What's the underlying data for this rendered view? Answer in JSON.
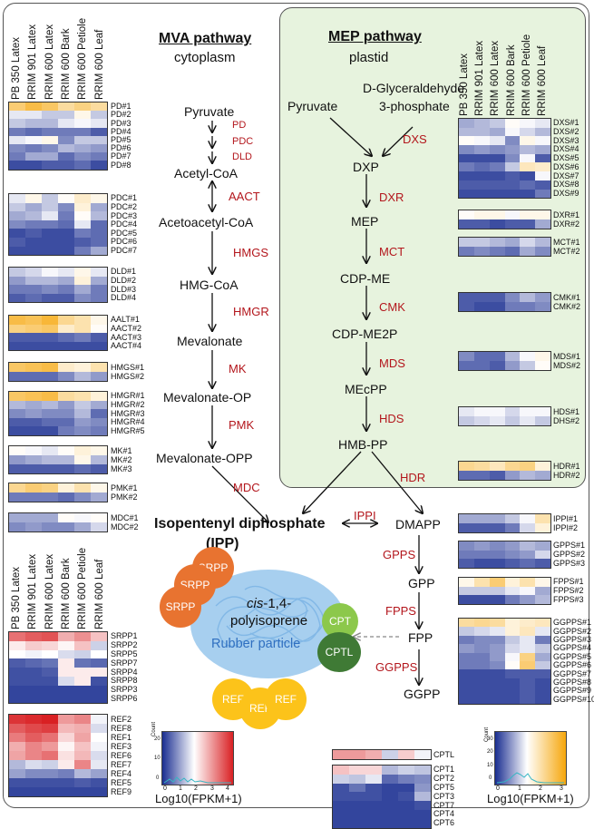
{
  "mva": {
    "title": "MVA pathway",
    "subtitle": "cytoplasm"
  },
  "mep": {
    "title": "MEP pathway",
    "subtitle": "plastid"
  },
  "columns": [
    "PB 350 Latex",
    "RRIM 901 Latex",
    "RRIM 600 Latex",
    "RRIM 600 Bark",
    "RRIM 600 Petiole",
    "RRIM 600 Leaf"
  ],
  "columns_left": [
    "PB 350 Latex",
    "RRIM 901 Latex",
    "RRIM 600 Latex",
    "RRIM 600 Bark",
    "RRIM 600 Petiole",
    "RRIM 600 Leaf"
  ],
  "columns_srpp": [
    "PB 350 Latex",
    "RRIM 901 Latex",
    "RRIM 600 Latex",
    "RRIM 600 Bark",
    "RRIM 600 Petiole",
    "RRIM 600 Leaf"
  ],
  "metabolites": {
    "pyruvate": "Pyruvate",
    "acetyl_coa": "Acetyl-CoA",
    "acetoacetyl_coa": "Acetoacetyl-CoA",
    "hmg_coa": "HMG-CoA",
    "mevalonate": "Mevalonate",
    "mevalonate_op": "Mevalonate-OP",
    "mevalonate_opp": "Mevalonate-OPP",
    "mep_pyruvate": "Pyruvate",
    "g3p_line1": "D-Glyceraldehyde",
    "g3p_line2": "3-phosphate",
    "dxp": "DXP",
    "mep": "MEP",
    "cdp_me": "CDP-ME",
    "cdp_me2p": "CDP-ME2P",
    "mecpp": "MEcPP",
    "hmb_pp": "HMB-PP",
    "ipp_line1": "Isopentenyl diphosphate",
    "ipp_line2": "(IPP)",
    "dmapp": "DMAPP",
    "gpp": "GPP",
    "fpp": "FPP",
    "ggpp": "GGPP"
  },
  "enzymes": {
    "pd": "PD",
    "pdc": "PDC",
    "dld": "DLD",
    "aact": "AACT",
    "hmgs": "HMGS",
    "hmgr": "HMGR",
    "mk": "MK",
    "pmk": "PMK",
    "mdc": "MDC",
    "dxs": "DXS",
    "dxr": "DXR",
    "mct": "MCT",
    "cmk": "CMK",
    "mds": "MDS",
    "hds": "HDS",
    "hdr": "HDR",
    "ippi": "IPPI",
    "gpps": "GPPS",
    "fpps": "FPPS",
    "ggpps": "GGPPS"
  },
  "rubber": {
    "line1_italic": "cis",
    "line1_rest": "-1,4-",
    "line2": "polyisoprene",
    "label": "Rubber particle",
    "srpp": "SRPP",
    "ref": "REF",
    "cpt": "CPT",
    "cptl": "CPTL"
  },
  "legend_red": {
    "axis_label": "Log10(FPKM+1)",
    "count_label": "Count",
    "ticks_x": [
      "0",
      "1",
      "2",
      "3",
      "4"
    ],
    "ticks_y": [
      "0",
      "10",
      "20"
    ]
  },
  "legend_orange": {
    "axis_label": "Log10(FPKM+1)",
    "count_label": "Count",
    "ticks_x": [
      "0",
      "1",
      "2",
      "3"
    ],
    "ticks_y": [
      "0",
      "10",
      "20",
      "30"
    ]
  },
  "heatmaps": [
    {
      "id": "pd",
      "scale": "blue-orange",
      "rows": [
        "PD#1",
        "PD#2",
        "PD#3",
        "PD#4",
        "PD#5",
        "PD#6",
        "PD#7",
        "PD#8"
      ],
      "values": [
        [
          2.3,
          2.6,
          2.4,
          2.0,
          2.2,
          2.0
        ],
        [
          1.2,
          1.2,
          1.0,
          1.0,
          1.5,
          1.0
        ],
        [
          1.0,
          0.9,
          0.9,
          1.2,
          1.3,
          1.2
        ],
        [
          0.5,
          0.4,
          0.5,
          0.5,
          0.5,
          0.3
        ],
        [
          1.2,
          1.3,
          1.5,
          0.6,
          1.0,
          1.0
        ],
        [
          0.6,
          0.5,
          0.6,
          0.9,
          0.8,
          0.7
        ],
        [
          0.5,
          0.8,
          0.8,
          0.4,
          0.6,
          0.5
        ],
        [
          0.2,
          0.2,
          0.3,
          0.3,
          0.4,
          0.2
        ]
      ]
    },
    {
      "id": "pdc",
      "scale": "blue-orange",
      "rows": [
        "PDC#1",
        "PDC#2",
        "PDC#3",
        "PDC#4",
        "PDC#5",
        "PDC#6",
        "PDC#7"
      ],
      "values": [
        [
          1.2,
          1.5,
          1.0,
          1.4,
          1.7,
          1.5
        ],
        [
          1.0,
          0.8,
          1.0,
          0.6,
          1.6,
          0.8
        ],
        [
          0.8,
          0.9,
          1.2,
          0.5,
          1.4,
          0.9
        ],
        [
          0.6,
          0.5,
          0.5,
          0.4,
          1.2,
          0.4
        ],
        [
          0.2,
          0.3,
          0.2,
          0.2,
          0.5,
          0.4
        ],
        [
          0.3,
          0.2,
          0.2,
          0.2,
          0.3,
          0.4
        ],
        [
          0.2,
          0.2,
          0.2,
          0.2,
          0.5,
          0.8
        ]
      ]
    },
    {
      "id": "dld",
      "scale": "blue-orange",
      "rows": [
        "DLD#1",
        "DLD#2",
        "DLD#3",
        "DLD#4"
      ],
      "values": [
        [
          1.0,
          1.1,
          1.3,
          1.2,
          1.5,
          1.2
        ],
        [
          0.7,
          0.9,
          0.9,
          0.8,
          1.6,
          0.8
        ],
        [
          0.5,
          0.5,
          0.6,
          0.5,
          0.8,
          0.5
        ],
        [
          0.3,
          0.4,
          0.3,
          0.3,
          0.6,
          0.5
        ]
      ]
    },
    {
      "id": "aact",
      "scale": "blue-orange",
      "rows": [
        "AALT#1",
        "AACT#2",
        "AACT#3",
        "AACT#4"
      ],
      "values": [
        [
          2.6,
          2.5,
          2.7,
          2.1,
          1.9,
          1.5
        ],
        [
          2.2,
          2.3,
          2.4,
          1.7,
          1.9,
          1.4
        ],
        [
          0.3,
          0.3,
          0.3,
          0.4,
          0.5,
          0.3
        ],
        [
          0.2,
          0.2,
          0.2,
          0.2,
          0.2,
          0.2
        ]
      ]
    },
    {
      "id": "hmgs",
      "scale": "blue-orange",
      "rows": [
        "HMGS#1",
        "HMGS#2"
      ],
      "values": [
        [
          2.4,
          2.5,
          2.6,
          1.7,
          1.6,
          1.9
        ],
        [
          0.4,
          0.4,
          0.4,
          0.6,
          0.9,
          0.7
        ]
      ]
    },
    {
      "id": "hmgr",
      "scale": "blue-orange",
      "rows": [
        "HMGR#1",
        "HMGR#2",
        "HMGR#3",
        "HMGR#4",
        "HMGR#5"
      ],
      "values": [
        [
          2.4,
          2.5,
          2.6,
          2.0,
          1.9,
          1.6
        ],
        [
          0.9,
          0.8,
          0.9,
          0.7,
          1.0,
          0.8
        ],
        [
          0.6,
          0.7,
          0.6,
          0.6,
          0.9,
          0.4
        ],
        [
          0.3,
          0.3,
          0.4,
          0.4,
          0.7,
          0.6
        ],
        [
          0.2,
          0.2,
          0.2,
          0.5,
          0.6,
          0.5
        ]
      ]
    },
    {
      "id": "mk",
      "scale": "blue-orange",
      "rows": [
        "MK#1",
        "MK#2",
        "MK#3"
      ],
      "values": [
        [
          1.4,
          1.3,
          1.2,
          1.4,
          1.6,
          1.5
        ],
        [
          0.7,
          0.8,
          0.9,
          0.9,
          1.5,
          0.9
        ],
        [
          0.3,
          0.3,
          0.3,
          0.3,
          0.4,
          0.3
        ]
      ]
    },
    {
      "id": "pmk",
      "scale": "blue-orange",
      "rows": [
        "PMK#1",
        "PMK#2"
      ],
      "values": [
        [
          2.1,
          2.3,
          2.2,
          1.6,
          1.9,
          1.5
        ],
        [
          0.5,
          0.5,
          0.5,
          0.4,
          0.6,
          0.8
        ]
      ]
    },
    {
      "id": "mdc",
      "scale": "blue-orange",
      "rows": [
        "MDC#1",
        "MDC#2"
      ],
      "values": [
        [
          0.8,
          0.8,
          0.8,
          1.4,
          1.3,
          1.4
        ],
        [
          0.6,
          0.7,
          0.6,
          0.6,
          0.8,
          1.1
        ]
      ]
    },
    {
      "id": "dxs",
      "scale": "blue-orange",
      "rows": [
        "DXS#1",
        "DXS#2",
        "DXS#3",
        "DXS#4",
        "DXS#5",
        "DXS#6",
        "DXS#7",
        "DXS#8",
        "DXS#9"
      ],
      "values": [
        [
          0.8,
          0.9,
          1.0,
          1.4,
          1.3,
          1.2
        ],
        [
          0.9,
          0.9,
          0.8,
          1.3,
          1.1,
          0.9
        ],
        [
          1.4,
          1.3,
          1.2,
          0.6,
          1.5,
          1.3
        ],
        [
          0.6,
          0.7,
          0.6,
          0.7,
          0.9,
          0.8
        ],
        [
          0.2,
          0.2,
          0.2,
          0.6,
          1.3,
          0.3
        ],
        [
          0.5,
          0.4,
          0.5,
          1.0,
          1.8,
          1.7
        ],
        [
          0.2,
          0.2,
          0.2,
          0.3,
          0.2,
          1.3
        ],
        [
          0.3,
          0.3,
          0.3,
          0.3,
          0.4,
          0.3
        ],
        [
          0.2,
          0.2,
          0.2,
          0.2,
          0.2,
          0.5
        ]
      ]
    },
    {
      "id": "dxr",
      "scale": "blue-orange",
      "rows": [
        "DXR#1",
        "DXR#2"
      ],
      "values": [
        [
          1.4,
          1.5,
          1.5,
          1.3,
          1.5,
          1.5
        ],
        [
          0.3,
          0.3,
          0.2,
          0.3,
          0.3,
          0.8
        ]
      ]
    },
    {
      "id": "mct",
      "scale": "blue-orange",
      "rows": [
        "MCT#1",
        "MCT#2"
      ],
      "values": [
        [
          1.0,
          1.0,
          0.9,
          0.8,
          1.1,
          0.9
        ],
        [
          0.5,
          0.6,
          0.5,
          0.4,
          0.8,
          0.6
        ]
      ]
    },
    {
      "id": "cmk",
      "scale": "blue-orange",
      "rows": [
        "CMK#1",
        "CMK#2"
      ],
      "values": [
        [
          0.3,
          0.3,
          0.3,
          0.6,
          0.9,
          0.7
        ],
        [
          0.3,
          0.2,
          0.2,
          0.5,
          0.5,
          0.6
        ]
      ]
    },
    {
      "id": "mds",
      "scale": "blue-orange",
      "rows": [
        "MDS#1",
        "MDS#2"
      ],
      "values": [
        [
          0.6,
          0.4,
          0.4,
          0.9,
          1.3,
          1.5
        ],
        [
          0.4,
          0.4,
          0.3,
          0.7,
          1.0,
          1.4
        ]
      ]
    },
    {
      "id": "hds",
      "scale": "blue-orange",
      "rows": [
        "HDS#1",
        "DHS#2"
      ],
      "values": [
        [
          1.2,
          1.3,
          1.3,
          1.1,
          1.3,
          1.3
        ],
        [
          1.0,
          1.1,
          1.2,
          1.0,
          1.2,
          1.0
        ]
      ]
    },
    {
      "id": "hdr",
      "scale": "blue-orange",
      "rows": [
        "HDR#1",
        "HDR#2"
      ],
      "values": [
        [
          2.1,
          2.0,
          1.8,
          2.1,
          2.2,
          1.6
        ],
        [
          0.4,
          0.4,
          0.3,
          0.7,
          0.9,
          0.8
        ]
      ]
    },
    {
      "id": "ippi",
      "scale": "blue-orange",
      "rows": [
        "IPPI#1",
        "IPPI#2"
      ],
      "values": [
        [
          0.8,
          0.8,
          0.8,
          1.0,
          1.3,
          1.9
        ],
        [
          0.3,
          0.3,
          0.3,
          0.5,
          1.1,
          1.6
        ]
      ]
    },
    {
      "id": "gpps",
      "scale": "blue-orange",
      "rows": [
        "GPPS#1",
        "GPPS#2",
        "GPPS#3"
      ],
      "values": [
        [
          0.6,
          0.7,
          0.6,
          0.7,
          0.9,
          0.8
        ],
        [
          0.5,
          0.5,
          0.5,
          0.6,
          0.7,
          1.1
        ],
        [
          0.3,
          0.2,
          0.2,
          0.3,
          0.4,
          0.3
        ]
      ]
    },
    {
      "id": "fpps",
      "scale": "blue-orange",
      "rows": [
        "FPPS#1",
        "FPPS#2",
        "FPPS#3"
      ],
      "values": [
        [
          1.5,
          1.9,
          2.3,
          1.6,
          1.9,
          1.5
        ],
        [
          1.0,
          1.0,
          1.0,
          1.2,
          1.3,
          0.8
        ],
        [
          0.2,
          0.2,
          0.2,
          0.5,
          0.7,
          0.9
        ]
      ]
    },
    {
      "id": "ggpps",
      "scale": "blue-orange",
      "rows": [
        "GGPPS#1",
        "GGPPS#2",
        "GGPPS#3",
        "GGPPS#4",
        "GGPPS#5",
        "GGPPS#6",
        "GGPPS#7",
        "GGPPS#8",
        "GGPPS#9",
        "GGPPS#10"
      ],
      "values": [
        [
          2.0,
          2.1,
          2.0,
          1.6,
          1.7,
          1.8
        ],
        [
          1.0,
          1.1,
          1.2,
          1.6,
          1.8,
          1.2
        ],
        [
          0.5,
          0.6,
          0.6,
          1.0,
          1.2,
          0.5
        ],
        [
          0.7,
          0.6,
          0.7,
          1.1,
          1.2,
          1.0
        ],
        [
          0.5,
          0.5,
          0.7,
          1.3,
          2.2,
          0.8
        ],
        [
          0.5,
          0.5,
          0.6,
          1.4,
          2.3,
          1.0
        ],
        [
          0.2,
          0.2,
          0.2,
          0.3,
          0.3,
          0.3
        ],
        [
          0.2,
          0.2,
          0.2,
          0.2,
          0.3,
          0.2
        ],
        [
          0.2,
          0.2,
          0.2,
          0.2,
          0.3,
          0.2
        ],
        [
          0.2,
          0.2,
          0.2,
          0.2,
          0.3,
          0.2
        ]
      ]
    },
    {
      "id": "srpp",
      "scale": "blue-red",
      "rows": [
        "SRPP1",
        "SRPP2",
        "SRPP5",
        "SRPP7",
        "SRPP4",
        "SRPP8",
        "SRPP3",
        "SRPP6"
      ],
      "values": [
        [
          3.2,
          3.4,
          3.5,
          2.6,
          2.9,
          2.4
        ],
        [
          2.0,
          2.3,
          2.2,
          1.9,
          2.4,
          1.4
        ],
        [
          1.8,
          1.7,
          1.8,
          1.5,
          1.4,
          1.8
        ],
        [
          0.4,
          0.5,
          0.6,
          2.0,
          0.6,
          0.5
        ],
        [
          0.3,
          0.3,
          0.4,
          2.0,
          2.0,
          2.0
        ],
        [
          0.3,
          0.3,
          0.3,
          1.5,
          2.0,
          0.3
        ],
        [
          0.2,
          0.2,
          0.2,
          0.2,
          0.2,
          0.2
        ],
        [
          0.2,
          0.2,
          0.2,
          0.2,
          0.2,
          0.2
        ]
      ]
    },
    {
      "id": "ref",
      "scale": "blue-red",
      "rows": [
        "REF2",
        "REF8",
        "REF1",
        "REF3",
        "REF6",
        "REF7",
        "REF4",
        "REF5",
        "REF9"
      ],
      "values": [
        [
          3.8,
          3.9,
          4.0,
          2.8,
          3.0,
          1.7
        ],
        [
          3.4,
          3.6,
          3.7,
          2.5,
          2.6,
          1.5
        ],
        [
          3.1,
          3.4,
          3.2,
          2.2,
          2.7,
          1.8
        ],
        [
          2.6,
          3.0,
          2.8,
          1.9,
          2.4,
          1.7
        ],
        [
          2.7,
          3.0,
          3.2,
          2.1,
          2.5,
          1.5
        ],
        [
          1.2,
          1.5,
          1.4,
          2.0,
          3.0,
          1.6
        ],
        [
          1.0,
          0.8,
          0.8,
          0.7,
          1.2,
          1.0
        ],
        [
          0.3,
          0.3,
          0.3,
          0.3,
          0.4,
          0.3
        ],
        [
          0.2,
          0.2,
          0.2,
          0.2,
          0.2,
          0.2
        ]
      ]
    },
    {
      "id": "cptl",
      "scale": "blue-red",
      "rows": [
        "CPTL"
      ],
      "values": [
        [
          2.8,
          2.8,
          2.6,
          1.4,
          2.3,
          1.7
        ]
      ]
    },
    {
      "id": "cpt",
      "scale": "blue-red",
      "rows": [
        "CPT1",
        "CPT2",
        "CPT5",
        "CPT3",
        "CPT7",
        "CPT4",
        "CPT6"
      ],
      "values": [
        [
          2.4,
          2.2,
          2.2,
          1.2,
          1.4,
          1.3
        ],
        [
          1.4,
          1.3,
          1.6,
          0.5,
          0.7,
          0.8
        ],
        [
          0.3,
          0.6,
          0.3,
          0.2,
          0.2,
          0.9
        ],
        [
          0.3,
          0.3,
          0.3,
          0.2,
          0.3,
          1.2
        ],
        [
          0.2,
          0.2,
          0.2,
          0.2,
          0.2,
          0.3
        ],
        [
          0.2,
          0.2,
          0.2,
          0.2,
          0.2,
          0.2
        ],
        [
          0.2,
          0.2,
          0.2,
          0.2,
          0.2,
          0.2
        ]
      ]
    }
  ]
}
